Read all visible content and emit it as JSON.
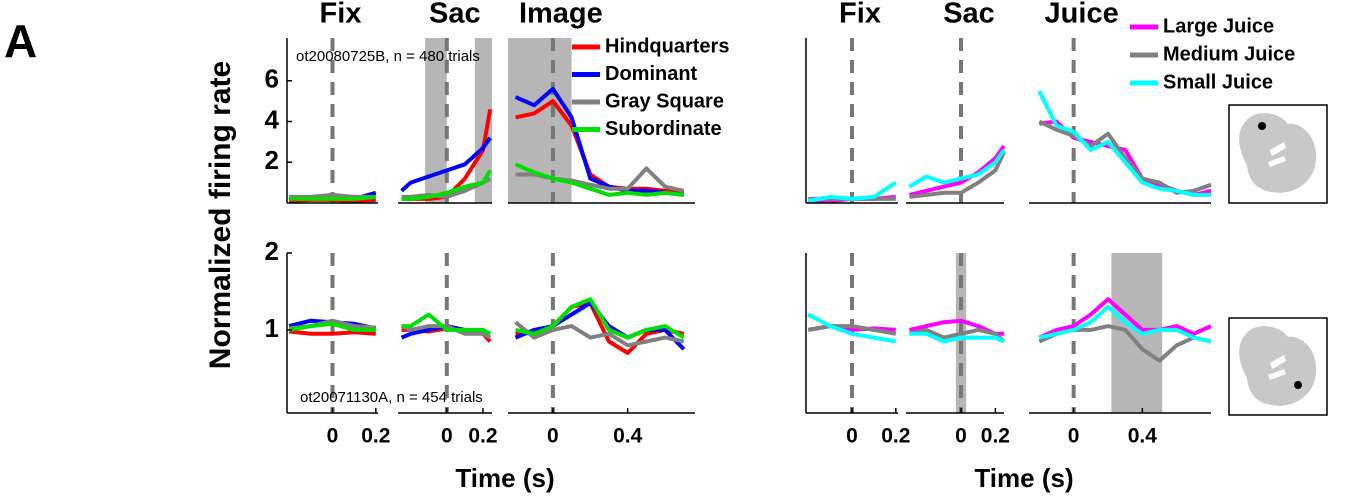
{
  "panel_label": "A",
  "ylabel": "Normalized firing rate",
  "chart_data": [
    {
      "type": "line",
      "annotation": "ot20080725B, n = 480 trials",
      "ylim": [
        0,
        8.1
      ],
      "yticks": [
        2,
        4,
        6
      ],
      "event_x": 0,
      "legend": [
        {
          "name": "Hindquarters",
          "color": "#ff0000"
        },
        {
          "name": "Dominant",
          "color": "#0000ff"
        },
        {
          "name": "Gray Square",
          "color": "#808080"
        },
        {
          "name": "Subordinate",
          "color": "#00e000"
        }
      ],
      "panels": [
        {
          "title": "Fix",
          "xlim": [
            -0.21,
            0.21
          ],
          "x": [
            -0.2,
            -0.1,
            0,
            0.1,
            0.2
          ],
          "series": [
            {
              "color": "#ff0000",
              "values": [
                0.1,
                0.15,
                0.15,
                0.1,
                0.15
              ]
            },
            {
              "color": "#0000ff",
              "values": [
                0.2,
                0.2,
                0.3,
                0.2,
                0.5
              ]
            },
            {
              "color": "#808080",
              "values": [
                0.3,
                0.3,
                0.4,
                0.3,
                0.3
              ]
            },
            {
              "color": "#00e000",
              "values": [
                0.2,
                0.2,
                0.2,
                0.2,
                0.3
              ]
            }
          ]
        },
        {
          "title": "Sac",
          "xlim": [
            -0.27,
            0.25
          ],
          "x": [
            -0.25,
            -0.2,
            -0.1,
            0,
            0.1,
            0.2,
            0.24
          ],
          "shade": [
            [
              -0.12,
              0
            ],
            [
              0.155,
              0.25
            ]
          ],
          "series": [
            {
              "color": "#ff0000",
              "values": [
                0.2,
                0.2,
                0.2,
                0.3,
                1.2,
                2.6,
                4.6
              ]
            },
            {
              "color": "#0000ff",
              "values": [
                0.6,
                1.0,
                1.3,
                1.6,
                1.9,
                2.7,
                3.2
              ]
            },
            {
              "color": "#808080",
              "values": [
                0.3,
                0.3,
                0.4,
                0.3,
                0.6,
                1.0,
                1.2
              ]
            },
            {
              "color": "#00e000",
              "values": [
                0.2,
                0.2,
                0.3,
                0.5,
                0.8,
                1.0,
                1.6
              ]
            }
          ]
        },
        {
          "title": "Image",
          "xlim": [
            -0.24,
            0.76
          ],
          "x": [
            -0.2,
            -0.1,
            0,
            0.1,
            0.2,
            0.3,
            0.4,
            0.5,
            0.6,
            0.7
          ],
          "shade": [
            [
              -0.24,
              0.1
            ]
          ],
          "series": [
            {
              "color": "#ff0000",
              "values": [
                4.2,
                4.4,
                5.0,
                3.8,
                1.4,
                0.8,
                0.7,
                0.7,
                0.6,
                0.5
              ]
            },
            {
              "color": "#0000ff",
              "values": [
                5.2,
                4.8,
                5.6,
                4.2,
                1.2,
                0.8,
                0.6,
                0.6,
                0.5,
                0.4
              ]
            },
            {
              "color": "#808080",
              "values": [
                1.4,
                1.4,
                1.2,
                1.1,
                0.9,
                0.7,
                0.7,
                1.7,
                0.8,
                0.6
              ]
            },
            {
              "color": "#00e000",
              "values": [
                1.9,
                1.5,
                1.2,
                1.0,
                0.7,
                0.4,
                0.5,
                0.4,
                0.5,
                0.4
              ]
            }
          ]
        }
      ]
    },
    {
      "type": "line",
      "annotation": "ot20071130A, n = 454 trials",
      "xlabel": "Time (s)",
      "ylim": [
        -0.08,
        2
      ],
      "yticks": [
        1,
        2
      ],
      "event_x": 0,
      "panels": [
        {
          "xlim": [
            -0.21,
            0.21
          ],
          "xticks": [
            0,
            0.2
          ],
          "x": [
            -0.2,
            -0.1,
            0,
            0.1,
            0.2
          ],
          "series": [
            {
              "color": "#ff0000",
              "values": [
                0.98,
                0.95,
                0.95,
                0.97,
                0.95
              ]
            },
            {
              "color": "#0000ff",
              "values": [
                1.05,
                1.12,
                1.1,
                1.08,
                1.02
              ]
            },
            {
              "color": "#808080",
              "values": [
                1.02,
                1.05,
                1.12,
                1.05,
                1.03
              ]
            },
            {
              "color": "#00e000",
              "values": [
                1.0,
                1.05,
                1.08,
                1.0,
                1.0
              ]
            }
          ]
        },
        {
          "xlim": [
            -0.27,
            0.25
          ],
          "xticks": [
            0,
            0.2
          ],
          "x": [
            -0.25,
            -0.2,
            -0.1,
            0,
            0.1,
            0.2,
            0.24
          ],
          "series": [
            {
              "color": "#ff0000",
              "values": [
                1.0,
                1.0,
                0.98,
                1.02,
                1.0,
                0.95,
                0.85
              ]
            },
            {
              "color": "#0000ff",
              "values": [
                0.9,
                0.95,
                1.0,
                1.05,
                1.0,
                0.95,
                0.9
              ]
            },
            {
              "color": "#808080",
              "values": [
                1.05,
                1.0,
                1.05,
                1.05,
                0.95,
                0.95,
                0.9
              ]
            },
            {
              "color": "#00e000",
              "values": [
                1.05,
                1.05,
                1.2,
                1.0,
                1.0,
                1.0,
                0.95
              ]
            }
          ]
        },
        {
          "xlim": [
            -0.24,
            0.76
          ],
          "xticks": [
            0,
            0.4
          ],
          "x": [
            -0.2,
            -0.1,
            0,
            0.1,
            0.2,
            0.3,
            0.4,
            0.5,
            0.6,
            0.7
          ],
          "series": [
            {
              "color": "#ff0000",
              "values": [
                0.95,
                0.98,
                1.05,
                1.3,
                1.35,
                0.85,
                0.7,
                0.95,
                1.0,
                0.95
              ]
            },
            {
              "color": "#0000ff",
              "values": [
                0.9,
                1.0,
                1.05,
                1.2,
                1.35,
                1.05,
                0.9,
                1.0,
                1.0,
                0.75
              ]
            },
            {
              "color": "#808080",
              "values": [
                1.1,
                0.9,
                1.0,
                1.05,
                0.9,
                0.95,
                0.8,
                0.85,
                0.9,
                0.85
              ]
            },
            {
              "color": "#00e000",
              "values": [
                1.0,
                0.95,
                1.05,
                1.3,
                1.4,
                1.0,
                0.9,
                1.0,
                1.05,
                0.9
              ]
            }
          ]
        }
      ]
    },
    {
      "type": "line",
      "ylim": [
        0,
        8.1
      ],
      "event_x": 0,
      "legend": [
        {
          "name": "Large Juice",
          "color": "#ff00ff"
        },
        {
          "name": "Medium Juice",
          "color": "#808080"
        },
        {
          "name": "Small Juice",
          "color": "#00ffff"
        }
      ],
      "panels": [
        {
          "title": "Fix",
          "xlim": [
            -0.21,
            0.21
          ],
          "x": [
            -0.2,
            -0.1,
            0,
            0.1,
            0.2
          ],
          "series": [
            {
              "color": "#ff00ff",
              "values": [
                0.1,
                0.1,
                0.2,
                0.2,
                0.3
              ]
            },
            {
              "color": "#808080",
              "values": [
                0.2,
                0.2,
                0.2,
                0.2,
                0.2
              ]
            },
            {
              "color": "#00ffff",
              "values": [
                0.1,
                0.3,
                0.2,
                0.3,
                1.0
              ]
            }
          ]
        },
        {
          "title": "Sac",
          "xlim": [
            -0.32,
            0.25
          ],
          "x": [
            -0.3,
            -0.2,
            -0.1,
            0,
            0.1,
            0.2,
            0.25
          ],
          "series": [
            {
              "color": "#ff00ff",
              "values": [
                0.4,
                0.6,
                0.8,
                1.0,
                1.5,
                2.2,
                2.8
              ]
            },
            {
              "color": "#808080",
              "values": [
                0.3,
                0.4,
                0.5,
                0.5,
                1.0,
                1.6,
                2.5
              ]
            },
            {
              "color": "#00ffff",
              "values": [
                0.8,
                1.3,
                1.0,
                1.2,
                1.4,
                2.0,
                2.6
              ]
            }
          ]
        },
        {
          "title": "Juice",
          "xlim": [
            -0.26,
            0.8
          ],
          "x": [
            -0.2,
            -0.1,
            0,
            0.1,
            0.2,
            0.3,
            0.4,
            0.5,
            0.6,
            0.7,
            0.8
          ],
          "series": [
            {
              "color": "#ff00ff",
              "values": [
                3.9,
                4.0,
                3.2,
                3.0,
                2.8,
                2.6,
                1.2,
                0.9,
                0.6,
                0.4,
                0.6
              ]
            },
            {
              "color": "#808080",
              "values": [
                4.0,
                3.6,
                3.3,
                2.8,
                3.4,
                2.2,
                1.2,
                1.0,
                0.5,
                0.6,
                0.9
              ]
            },
            {
              "color": "#00ffff",
              "values": [
                5.5,
                3.8,
                3.5,
                2.6,
                3.0,
                2.0,
                1.0,
                0.7,
                0.6,
                0.4,
                0.4
              ]
            }
          ]
        }
      ]
    },
    {
      "type": "line",
      "xlabel": "Time (s)",
      "ylim": [
        -0.08,
        2
      ],
      "event_x": 0,
      "panels": [
        {
          "xlim": [
            -0.21,
            0.21
          ],
          "xticks": [
            0,
            0.2
          ],
          "x": [
            -0.2,
            -0.1,
            0,
            0.1,
            0.2
          ],
          "series": [
            {
              "color": "#ff00ff",
              "values": [
                1.0,
                1.05,
                1.0,
                1.02,
                1.0
              ]
            },
            {
              "color": "#808080",
              "values": [
                1.0,
                1.05,
                1.05,
                1.0,
                0.95
              ]
            },
            {
              "color": "#00ffff",
              "values": [
                1.2,
                1.05,
                0.95,
                0.9,
                0.85
              ]
            }
          ]
        },
        {
          "xlim": [
            -0.32,
            0.25
          ],
          "xticks": [
            0,
            0.2
          ],
          "x": [
            -0.3,
            -0.2,
            -0.1,
            0,
            0.1,
            0.2,
            0.25
          ],
          "shade": [
            [
              -0.03,
              0.03
            ]
          ],
          "series": [
            {
              "color": "#ff00ff",
              "values": [
                1.0,
                1.05,
                1.1,
                1.12,
                1.05,
                0.95,
                0.95
              ]
            },
            {
              "color": "#808080",
              "values": [
                0.95,
                1.0,
                0.9,
                0.95,
                1.0,
                0.95,
                0.85
              ]
            },
            {
              "color": "#00ffff",
              "values": [
                0.95,
                0.95,
                0.85,
                0.9,
                0.9,
                0.9,
                0.85
              ]
            }
          ]
        },
        {
          "xlim": [
            -0.26,
            0.8
          ],
          "xticks": [
            0,
            0.4
          ],
          "x": [
            -0.2,
            -0.1,
            0,
            0.1,
            0.2,
            0.3,
            0.4,
            0.5,
            0.6,
            0.7,
            0.8
          ],
          "shade": [
            [
              0.22,
              0.516
            ]
          ],
          "series": [
            {
              "color": "#ff00ff",
              "values": [
                0.9,
                1.0,
                1.05,
                1.2,
                1.4,
                1.2,
                1.0,
                1.0,
                1.05,
                0.95,
                1.05
              ]
            },
            {
              "color": "#808080",
              "values": [
                0.85,
                0.95,
                1.0,
                1.0,
                1.05,
                1.0,
                0.75,
                0.6,
                0.8,
                0.9,
                0.85
              ]
            },
            {
              "color": "#00ffff",
              "values": [
                0.9,
                0.95,
                1.0,
                1.1,
                1.3,
                1.1,
                0.95,
                1.0,
                1.0,
                0.9,
                0.85
              ]
            }
          ]
        }
      ]
    }
  ]
}
